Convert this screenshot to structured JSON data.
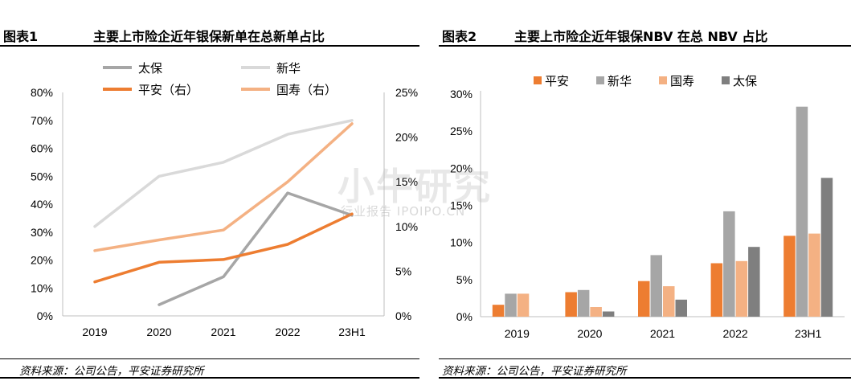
{
  "figures": {
    "left": {
      "number": "图表1",
      "title": "主要上市险企近年银保新单在总新单占比",
      "source": "资料来源：公司公告，平安证券研究所"
    },
    "right": {
      "number": "图表2",
      "title": "主要上市险企近年银保NBV 在总 NBV 占比",
      "source": "资料来源：公司公告，平安证券研究所"
    }
  },
  "watermark": {
    "main": "小牛研究",
    "sub": "行业报告 IPOIPO.CN"
  },
  "colors": {
    "太保": "#a6a6a6",
    "新华": "#d9d9d9",
    "平安": "#ed7d31",
    "国寿": "#f4b183",
    "太保_bar": "#7f7f7f"
  },
  "chart_data": [
    {
      "type": "line",
      "title": "主要上市险企近年银保新单在总新单占比",
      "categories": [
        "2019",
        "2020",
        "2021",
        "2022",
        "23H1"
      ],
      "y_left": {
        "ylim": [
          0,
          80
        ],
        "ticks": [
          "0%",
          "10%",
          "20%",
          "30%",
          "40%",
          "50%",
          "60%",
          "70%",
          "80%"
        ]
      },
      "y_right": {
        "ylim": [
          0,
          25
        ],
        "ticks": [
          "0%",
          "5%",
          "10%",
          "15%",
          "20%",
          "25%"
        ]
      },
      "legend_position": "top",
      "series": [
        {
          "name": "太保",
          "axis": "left",
          "color": "#a6a6a6",
          "values": [
            null,
            4,
            14,
            44,
            36
          ]
        },
        {
          "name": "新华",
          "axis": "left",
          "color": "#d9d9d9",
          "values": [
            32,
            50,
            55,
            65,
            70
          ]
        },
        {
          "name": "平安（右）",
          "axis": "right",
          "color": "#ed7d31",
          "values": [
            3.8,
            6.0,
            6.3,
            8.0,
            11.4
          ]
        },
        {
          "name": "国寿（右）",
          "axis": "right",
          "color": "#f4b183",
          "values": [
            7.3,
            8.5,
            9.6,
            15.0,
            21.5
          ]
        }
      ]
    },
    {
      "type": "bar",
      "title": "主要上市险企近年银保NBV 在总 NBV 占比",
      "categories": [
        "2019",
        "2020",
        "2021",
        "2022",
        "23H1"
      ],
      "ylim": [
        0,
        30
      ],
      "y_ticks": [
        "0%",
        "5%",
        "10%",
        "15%",
        "20%",
        "25%",
        "30%"
      ],
      "legend_position": "top",
      "series": [
        {
          "name": "平安",
          "color": "#ed7d31",
          "values": [
            1.6,
            3.3,
            4.8,
            7.2,
            10.9
          ]
        },
        {
          "name": "新华",
          "color": "#a6a6a6",
          "values": [
            3.1,
            3.6,
            8.3,
            14.2,
            28.3
          ]
        },
        {
          "name": "国寿",
          "color": "#f4b183",
          "values": [
            3.1,
            1.3,
            4.1,
            7.5,
            11.2
          ]
        },
        {
          "name": "太保",
          "color": "#7f7f7f",
          "values": [
            null,
            0.7,
            2.3,
            9.4,
            18.7
          ]
        }
      ]
    }
  ]
}
